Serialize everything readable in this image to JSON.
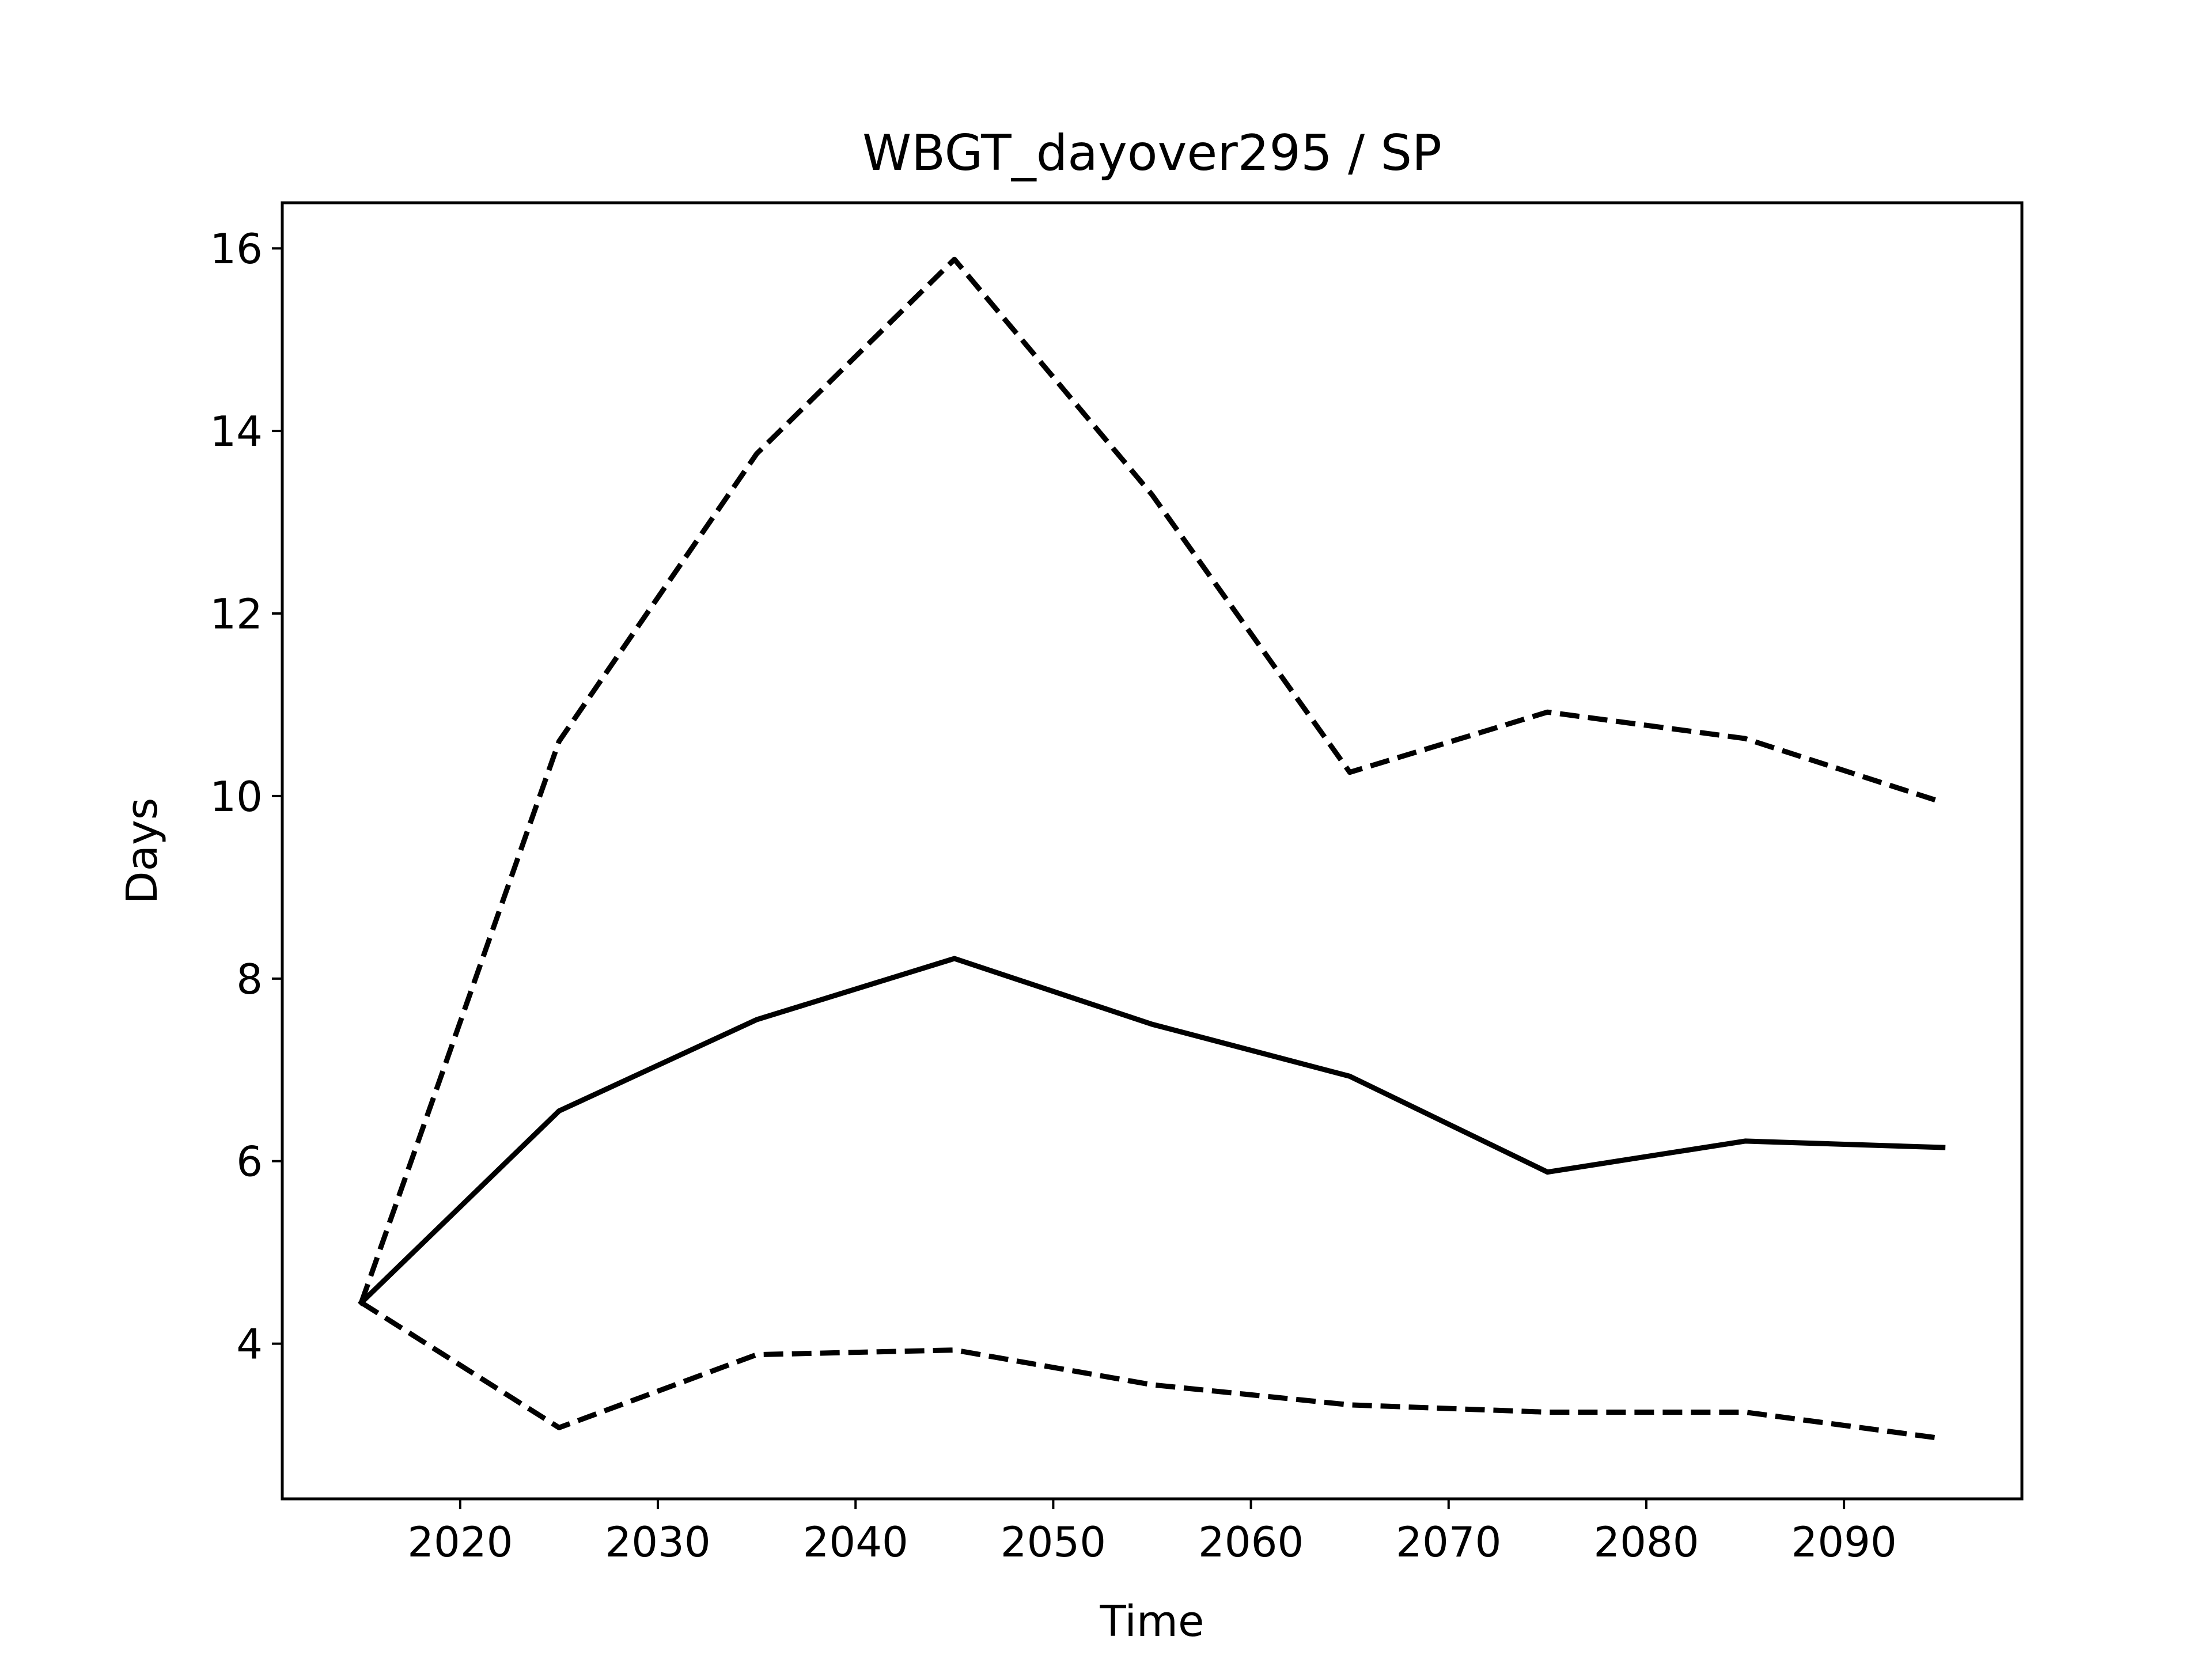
{
  "chart_data": {
    "type": "line",
    "title": "WBGT_dayover295 / SP",
    "xlabel": "Time",
    "ylabel": "Days",
    "x": [
      2015,
      2025,
      2035,
      2045,
      2055,
      2065,
      2075,
      2085,
      2095
    ],
    "series": [
      {
        "style": "solid",
        "color": "#000000",
        "values": [
          4.45,
          6.55,
          7.55,
          8.22,
          7.5,
          6.93,
          5.88,
          6.22,
          6.15
        ]
      },
      {
        "style": "dashed",
        "color": "#000000",
        "values": [
          4.45,
          10.6,
          13.75,
          15.88,
          13.3,
          10.26,
          10.92,
          10.63,
          9.93
        ]
      },
      {
        "style": "dashed",
        "color": "#000000",
        "values": [
          4.45,
          3.08,
          3.88,
          3.93,
          3.55,
          3.33,
          3.25,
          3.25,
          2.96
        ]
      }
    ],
    "xlim": [
      2011,
      2099
    ],
    "ylim": [
      2.3,
      16.5
    ],
    "xticks": [
      2020,
      2030,
      2040,
      2050,
      2060,
      2070,
      2080,
      2090
    ],
    "yticks": [
      4,
      6,
      8,
      10,
      12,
      14,
      16
    ],
    "grid": false,
    "legend": "none"
  }
}
